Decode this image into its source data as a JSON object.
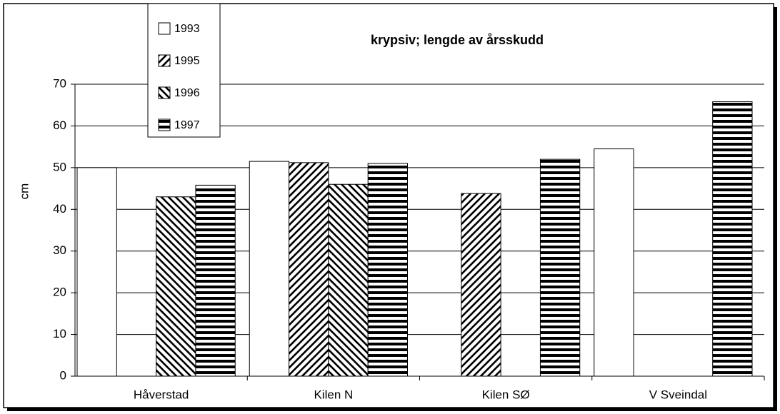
{
  "chart_data": {
    "type": "bar",
    "title": "krypsiv; lengde av årsskudd",
    "y_label": "cm",
    "categories": [
      "Håverstad",
      "Kilen N",
      "Kilen SØ",
      "V Sveindal"
    ],
    "series": [
      {
        "name": "1993",
        "color": "#000000",
        "pattern": "none",
        "values": [
          50,
          51.5,
          null,
          54.5
        ]
      },
      {
        "name": "1995",
        "color": "#000000",
        "pattern": "diagonal-up",
        "values": [
          null,
          51.2,
          43.8,
          null
        ]
      },
      {
        "name": "1996",
        "color": "#000000",
        "pattern": "diagonal-down",
        "values": [
          43,
          46,
          null,
          null
        ]
      },
      {
        "name": "1997",
        "color": "#000000",
        "pattern": "horizontal",
        "values": [
          45.8,
          51,
          52,
          65.8
        ]
      }
    ],
    "ylim": [
      0,
      70
    ],
    "yticks": [
      0,
      10,
      20,
      30,
      40,
      50,
      60,
      70
    ],
    "grid": true,
    "legend": "top-left"
  }
}
